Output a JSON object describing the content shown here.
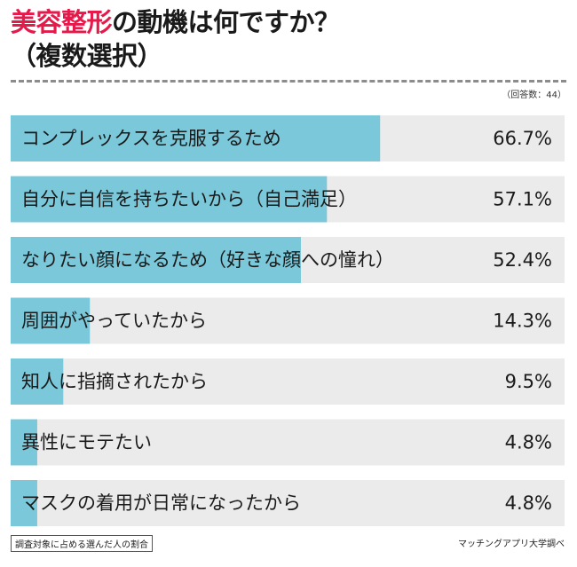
{
  "title": {
    "accent": "美容整形",
    "rest_line1": "の動機は何ですか？",
    "line2": "（複数選択）"
  },
  "respondents": "（回答数：44）",
  "footnote": "調査対象に占める選んだ人の割合",
  "source": "マッチングアプリ大学調べ",
  "colors": {
    "bar": "#7ac8d9",
    "track": "#ebebeb",
    "accent": "#e5194a"
  },
  "chart_data": {
    "type": "bar",
    "orientation": "horizontal",
    "xlim": [
      0,
      100
    ],
    "categories": [
      "コンプレックスを克服するため",
      "自分に自信を持ちたいから（自己満足）",
      "なりたい顔になるため（好きな顔への憧れ）",
      "周囲がやっていたから",
      "知人に指摘されたから",
      "異性にモテたい",
      "マスクの着用が日常になったから"
    ],
    "values": [
      66.7,
      57.1,
      52.4,
      14.3,
      9.5,
      4.8,
      4.8
    ],
    "value_labels": [
      "66.7%",
      "57.1%",
      "52.4%",
      "14.3%",
      "9.5%",
      "4.8%",
      "4.8%"
    ]
  }
}
